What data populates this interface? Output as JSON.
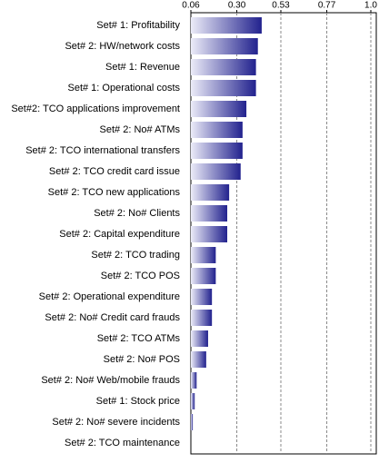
{
  "chart_data": {
    "type": "bar",
    "orientation": "horizontal",
    "categories": [
      "Set# 1: Profitability",
      "Set# 2: HW/network costs",
      "Set# 1: Revenue",
      "Set# 1: Operational costs",
      "Set#2: TCO applications improvement",
      "Set# 2: No# ATMs",
      "Set# 2: TCO international transfers",
      "Set# 2: TCO credit card issue",
      "Set# 2: TCO new applications",
      "Set# 2: No# Clients",
      "Set# 2: Capital expenditure",
      "Set# 2: TCO trading",
      "Set# 2: TCO POS",
      "Set# 2: Operational expenditure",
      "Set# 2: No# Credit card frauds",
      "Set# 2: TCO ATMs",
      "Set# 2: No# POS",
      "Set# 2: No# Web/mobile frauds",
      "Set# 1: Stock price",
      "Set# 2: No# severe incidents",
      "Set# 2: TCO maintenance"
    ],
    "values": [
      0.43,
      0.41,
      0.4,
      0.4,
      0.35,
      0.33,
      0.33,
      0.32,
      0.26,
      0.25,
      0.25,
      0.19,
      0.19,
      0.17,
      0.17,
      0.15,
      0.14,
      0.09,
      0.08,
      0.07,
      0.06
    ],
    "color": "#22228e",
    "xlim": [
      0.06,
      1.0
    ],
    "xticks": [
      0.06,
      {
        "value": 0.3,
        "label": "0.30"
      },
      0.53,
      0.77,
      {
        "value": 1,
        "label": "1.0"
      }
    ],
    "grid": true
  }
}
